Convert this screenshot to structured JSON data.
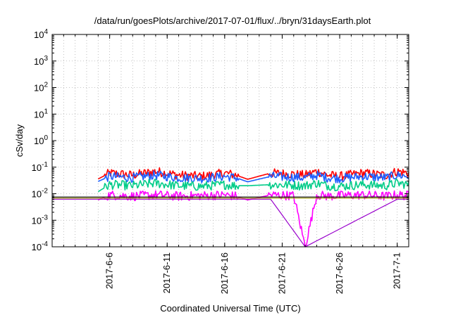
{
  "chart_data": {
    "type": "line",
    "title": "/data/run/goesPlots/archive/2017-07-01/flux/../bryn/31daysEarth.plot",
    "xlabel": "Coordinated Universal Time (UTC)",
    "ylabel": "cSv/day",
    "y_scale": "log",
    "ylim": [
      0.0001,
      10000
    ],
    "y_ticks": [
      {
        "value": 0.0001,
        "base": "10",
        "exp": "-4"
      },
      {
        "value": 0.001,
        "base": "10",
        "exp": "-3"
      },
      {
        "value": 0.01,
        "base": "10",
        "exp": "-2"
      },
      {
        "value": 0.1,
        "base": "10",
        "exp": "-1"
      },
      {
        "value": 1,
        "base": "10",
        "exp": "0"
      },
      {
        "value": 10,
        "base": "10",
        "exp": "1"
      },
      {
        "value": 100,
        "base": "10",
        "exp": "2"
      },
      {
        "value": 1000,
        "base": "10",
        "exp": "3"
      },
      {
        "value": 10000,
        "base": "10",
        "exp": "4"
      }
    ],
    "xlim": [
      "2017-06-01",
      "2017-07-02"
    ],
    "x_ticks": [
      {
        "value": "2017-06-06",
        "label": "2017-6-6"
      },
      {
        "value": "2017-06-11",
        "label": "2017-6-11"
      },
      {
        "value": "2017-06-16",
        "label": "2017-6-16"
      },
      {
        "value": "2017-06-21",
        "label": "2017-6-21"
      },
      {
        "value": "2017-06-26",
        "label": "2017-6-26"
      },
      {
        "value": "2017-07-01",
        "label": "2017-7-1"
      }
    ],
    "grid": true,
    "data_gaps": [
      [
        "2017-06-01",
        "2017-06-05T12:00"
      ],
      [
        "2017-06-17T06:00",
        "2017-06-19T18:00"
      ]
    ],
    "series": [
      {
        "color": "#ff0000",
        "values": [
          0.036,
          0.06,
          0.05,
          0.07,
          0.05,
          0.045,
          0.06,
          0.05,
          0.035,
          0.06,
          0.055,
          0.05,
          0.07,
          0.05,
          0.045,
          0.06,
          0.05,
          0.07,
          0.06
        ],
        "x": [
          "2017-06-05",
          "2017-06-06",
          "2017-06-08",
          "2017-06-10",
          "2017-06-12",
          "2017-06-14",
          "2017-06-16",
          "2017-06-17",
          "2017-06-18",
          "2017-06-20",
          "2017-06-22",
          "2017-06-23",
          "2017-06-24",
          "2017-06-25",
          "2017-06-26",
          "2017-06-28",
          "2017-06-30",
          "2017-07-01",
          "2017-07-02"
        ]
      },
      {
        "color": "#1e5eff",
        "values": [
          0.029,
          0.045,
          0.04,
          0.05,
          0.04,
          0.038,
          0.045,
          0.04,
          0.028,
          0.045,
          0.042,
          0.04,
          0.05,
          0.04,
          0.038,
          0.045,
          0.04,
          0.05,
          0.045
        ],
        "x": [
          "2017-06-05",
          "2017-06-06",
          "2017-06-08",
          "2017-06-10",
          "2017-06-12",
          "2017-06-14",
          "2017-06-16",
          "2017-06-17",
          "2017-06-18",
          "2017-06-20",
          "2017-06-22",
          "2017-06-23",
          "2017-06-24",
          "2017-06-25",
          "2017-06-26",
          "2017-06-28",
          "2017-06-30",
          "2017-07-01",
          "2017-07-02"
        ]
      },
      {
        "color": "#00cc88",
        "values": [
          0.012,
          0.022,
          0.02,
          0.025,
          0.02,
          0.019,
          0.022,
          0.02,
          0.02,
          0.022,
          0.021,
          0.02,
          0.025,
          0.02,
          0.019,
          0.022,
          0.02,
          0.025,
          0.022
        ],
        "x": [
          "2017-06-05",
          "2017-06-06",
          "2017-06-08",
          "2017-06-10",
          "2017-06-12",
          "2017-06-14",
          "2017-06-16",
          "2017-06-17",
          "2017-06-18",
          "2017-06-20",
          "2017-06-22",
          "2017-06-23",
          "2017-06-24",
          "2017-06-25",
          "2017-06-26",
          "2017-06-28",
          "2017-06-30",
          "2017-07-01",
          "2017-07-02"
        ]
      },
      {
        "color": "#ff00ff",
        "values": [
          0.0058,
          0.009,
          0.008,
          0.009,
          0.008,
          0.0085,
          0.009,
          0.008,
          0.0058,
          0.009,
          0.0085,
          0.0001,
          0.009,
          0.008,
          0.0085,
          0.009,
          0.008,
          0.009,
          0.0085
        ],
        "x": [
          "2017-06-05",
          "2017-06-06",
          "2017-06-08",
          "2017-06-10",
          "2017-06-12",
          "2017-06-14",
          "2017-06-16",
          "2017-06-17",
          "2017-06-18",
          "2017-06-20",
          "2017-06-22",
          "2017-06-23",
          "2017-06-24",
          "2017-06-25",
          "2017-06-26",
          "2017-06-28",
          "2017-06-30",
          "2017-07-01",
          "2017-07-02"
        ]
      },
      {
        "color": "#000000",
        "values": [
          0.0075,
          0.0075,
          0.0075,
          0.0075,
          0.0075,
          0.0075,
          0.0075,
          0.0075,
          0.0075
        ],
        "x": [
          "2017-06-01",
          "2017-06-05",
          "2017-06-10",
          "2017-06-15",
          "2017-06-17",
          "2017-06-20",
          "2017-06-25",
          "2017-07-01",
          "2017-07-02"
        ]
      },
      {
        "color": "#9a9a00",
        "values": [
          0.0068,
          0.0068,
          0.0068,
          0.0068,
          0.0068,
          0.0068,
          0.0068,
          0.0068,
          0.0068
        ],
        "x": [
          "2017-06-01",
          "2017-06-05",
          "2017-06-10",
          "2017-06-15",
          "2017-06-17",
          "2017-06-20",
          "2017-06-25",
          "2017-07-01",
          "2017-07-02"
        ]
      },
      {
        "color": "#9900cc",
        "values": [
          0.0062,
          0.0062,
          0.0062,
          0.0062,
          0.0062,
          0.0062,
          0.0001,
          0.0062,
          0.0062
        ],
        "x": [
          "2017-06-01",
          "2017-06-05",
          "2017-06-10",
          "2017-06-15",
          "2017-06-17",
          "2017-06-20",
          "2017-06-23",
          "2017-07-01",
          "2017-07-02"
        ]
      }
    ]
  }
}
